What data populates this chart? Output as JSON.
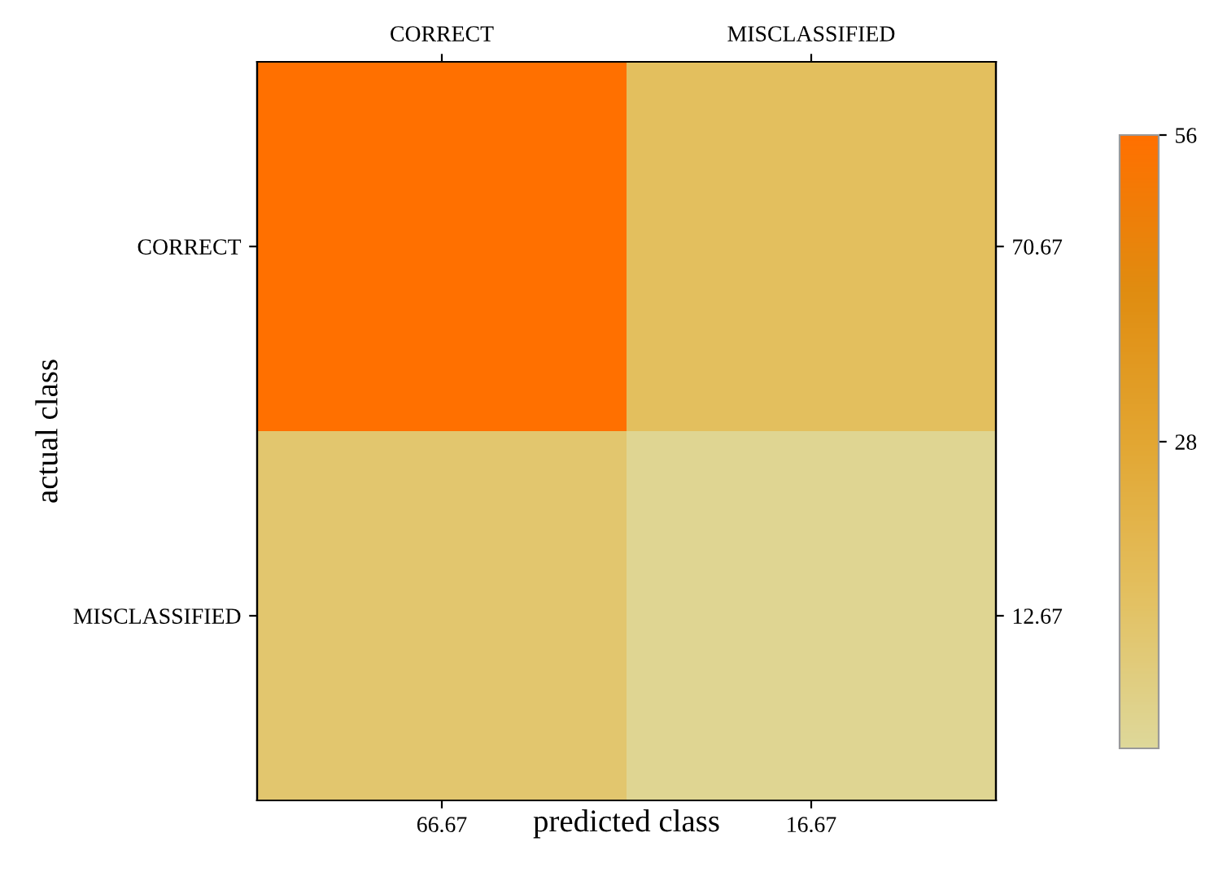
{
  "chart_data": {
    "type": "heatmap",
    "xlabel": "predicted class",
    "ylabel": "actual class",
    "categories": [
      "CORRECT",
      "MISCLASSIFIED"
    ],
    "y_categories": [
      "CORRECT",
      "MISCLASSIFIED"
    ],
    "y2_categories": [
      "70.67",
      "12.67"
    ],
    "cells": [
      [
        56,
        14.67
      ],
      [
        10.67,
        2
      ]
    ],
    "clim": [
      0,
      56
    ],
    "cticks": [
      28,
      56
    ],
    "annotations": [
      "66.67",
      "16.67"
    ]
  }
}
